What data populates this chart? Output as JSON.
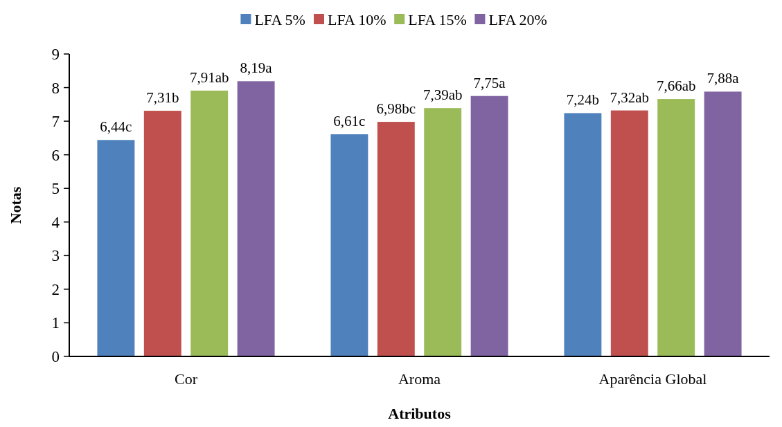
{
  "chart_data": {
    "type": "bar",
    "xlabel": "Atributos",
    "ylabel": "Notas",
    "categories": [
      "Cor",
      "Aroma",
      "Aparência Global"
    ],
    "series": [
      {
        "name": "LFA 5%",
        "color": "#4f81bd",
        "values": [
          6.44,
          6.61,
          7.24
        ],
        "value_labels": [
          "6,44c",
          "6,61c",
          "7,24b"
        ]
      },
      {
        "name": "LFA 10%",
        "color": "#c0504d",
        "values": [
          7.31,
          6.98,
          7.32
        ],
        "value_labels": [
          "7,31b",
          "6,98bc",
          "7,32ab"
        ]
      },
      {
        "name": "LFA 15%",
        "color": "#9bbb59",
        "values": [
          7.91,
          7.39,
          7.66
        ],
        "value_labels": [
          "7,91ab",
          "7,39ab",
          "7,66ab"
        ]
      },
      {
        "name": "LFA 20%",
        "color": "#8064a2",
        "values": [
          8.19,
          7.75,
          7.88
        ],
        "value_labels": [
          "8,19a",
          "7,75a",
          "7,88a"
        ]
      }
    ],
    "ylim": [
      0,
      9
    ],
    "yticks": [
      0,
      1,
      2,
      3,
      4,
      5,
      6,
      7,
      8,
      9
    ],
    "grid": false,
    "legend": "top"
  }
}
